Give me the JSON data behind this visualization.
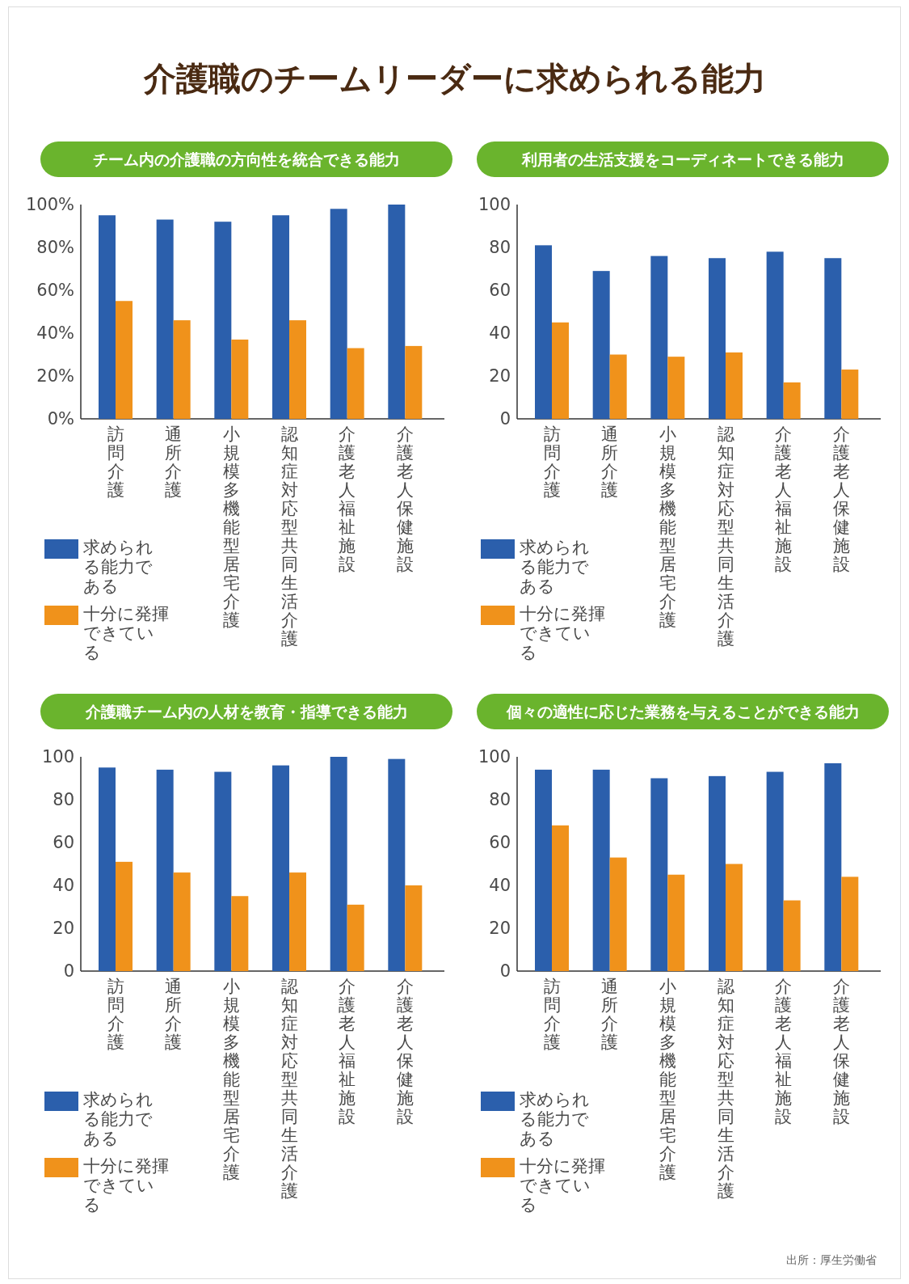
{
  "chart_data": [
    {
      "type": "bar",
      "title": "チーム内の介護職の方向性を統合できる能力",
      "annotations": [
        "介護職のチームリーダーに求められる能力"
      ],
      "categories": [
        "訪問介護",
        "通所介護",
        "小規模多機能型居宅介護",
        "認知症対応型共同生活介護",
        "介護老人福祉施設",
        "介護老人保健施設"
      ],
      "series": [
        {
          "name": "求められる能力である",
          "color": "#2b5fac",
          "values": [
            95,
            93,
            92,
            95,
            98,
            100
          ]
        },
        {
          "name": "十分に発揮できている",
          "color": "#f0921b",
          "values": [
            55,
            46,
            37,
            46,
            33,
            34
          ]
        }
      ],
      "ylim": [
        0,
        100
      ],
      "yticks": [
        {
          "value": 0,
          "label": "0%"
        },
        {
          "value": 20,
          "label": "20%"
        },
        {
          "value": 40,
          "label": "40%"
        },
        {
          "value": 60,
          "label": "60%"
        },
        {
          "value": 80,
          "label": "80%"
        },
        {
          "value": 100,
          "label": "100%"
        }
      ],
      "legend": "bottom left",
      "grid": false
    },
    {
      "type": "bar",
      "title": "利用者の生活支援をコーディネートできる能力",
      "categories": [
        "訪問介護",
        "通所介護",
        "小規模多機能型居宅介護",
        "認知症対応型共同生活介護",
        "介護老人福祉施設",
        "介護老人保健施設"
      ],
      "series": [
        {
          "name": "求められる能力である",
          "color": "#2b5fac",
          "values": [
            81,
            69,
            76,
            75,
            78,
            75
          ]
        },
        {
          "name": "十分に発揮できている",
          "color": "#f0921b",
          "values": [
            45,
            30,
            29,
            31,
            17,
            23
          ]
        }
      ],
      "ylim": [
        0,
        100
      ],
      "yticks": [
        0,
        20,
        40,
        60,
        80,
        100
      ],
      "legend": "bottom left",
      "grid": false
    },
    {
      "type": "bar",
      "title": "介護職チーム内の人材を教育・指導できる能力",
      "categories": [
        "訪問介護",
        "通所介護",
        "小規模多機能型居宅介護",
        "認知症対応型共同生活介護",
        "介護老人福祉施設",
        "介護老人保健施設"
      ],
      "series": [
        {
          "name": "求められる能力である",
          "color": "#2b5fac",
          "values": [
            95,
            94,
            93,
            96,
            100,
            99
          ]
        },
        {
          "name": "十分に発揮できている",
          "color": "#f0921b",
          "values": [
            51,
            46,
            35,
            46,
            31,
            40
          ]
        }
      ],
      "ylim": [
        0,
        100
      ],
      "yticks": [
        0,
        20,
        40,
        60,
        80,
        100
      ],
      "legend": "bottom left",
      "grid": false
    },
    {
      "type": "bar",
      "title": "個々の適性に応じた業務を与えることができる能力",
      "annotations": [
        "出所：厚生労働省"
      ],
      "categories": [
        "訪問介護",
        "通所介護",
        "小規模多機能型居宅介護",
        "認知症対応型共同生活介護",
        "介護老人福祉施設",
        "介護老人保健施設"
      ],
      "series": [
        {
          "name": "求められる能力である",
          "color": "#2b5fac",
          "values": [
            94,
            94,
            90,
            91,
            93,
            97
          ]
        },
        {
          "name": "十分に発揮できている",
          "color": "#f0921b",
          "values": [
            68,
            53,
            45,
            50,
            33,
            44
          ]
        }
      ],
      "ylim": [
        0,
        100
      ],
      "yticks": [
        0,
        20,
        40,
        60,
        80,
        100
      ],
      "legend": "bottom left",
      "grid": false
    }
  ]
}
